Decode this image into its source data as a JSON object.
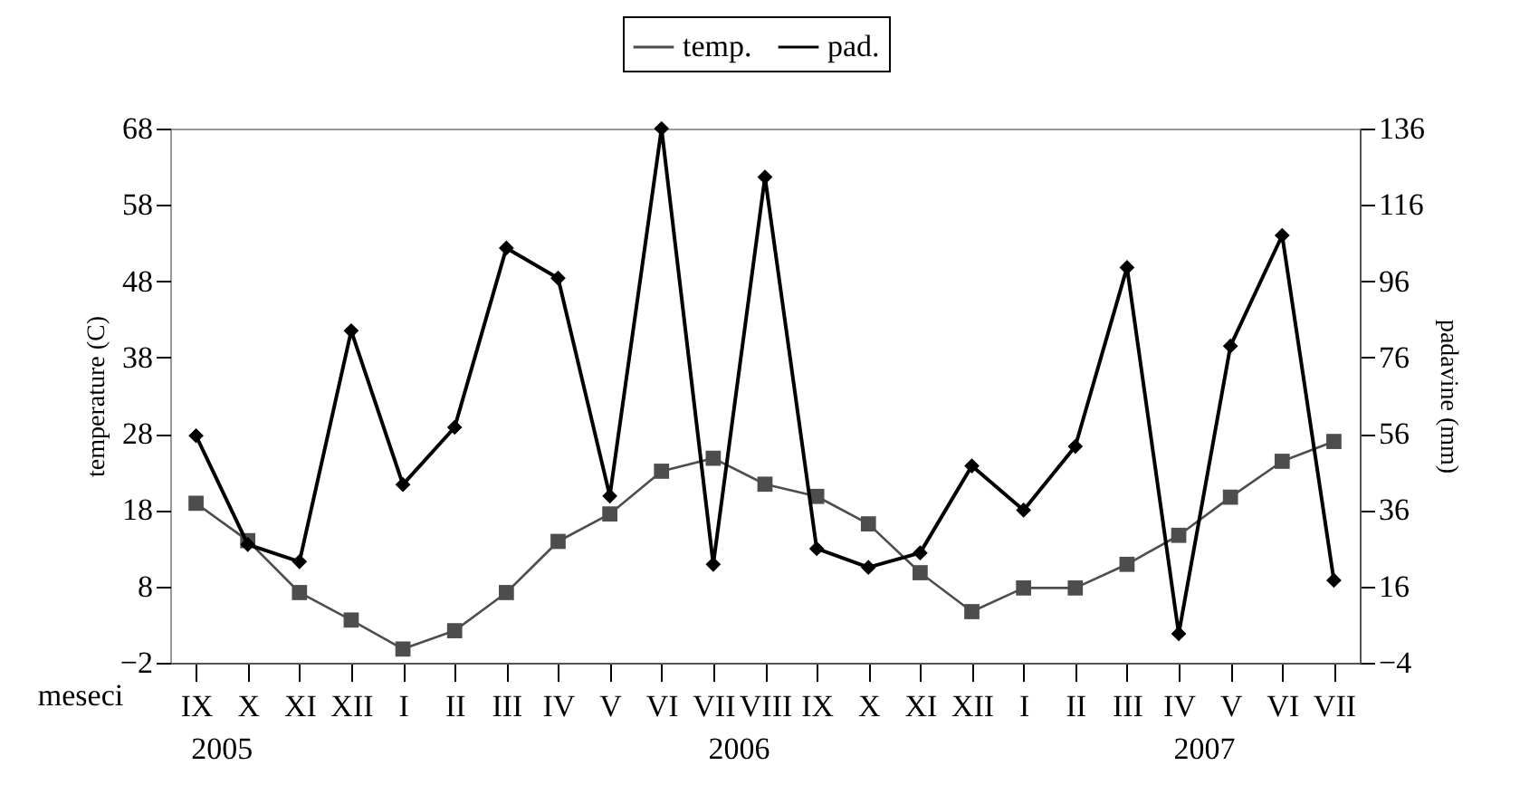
{
  "chart_data": {
    "type": "line",
    "xlabel": "meseci",
    "ylabel": "temperature (C)",
    "y2label": "padavine (mm)",
    "categories": [
      "IX",
      "X",
      "XI",
      "XII",
      "I",
      "II",
      "III",
      "IV",
      "V",
      "VI",
      "VII",
      "VIII",
      "IX",
      "X",
      "XI",
      "XII",
      "I",
      "II",
      "III",
      "IV",
      "V",
      "VI",
      "VII"
    ],
    "series": [
      {
        "name": "temp.",
        "color": "#4d4d4d",
        "marker": "square",
        "values": [
          18.9,
          14,
          7.2,
          3.6,
          -0.2,
          2.2,
          7.2,
          13.9,
          17.5,
          23.1,
          24.8,
          21.4,
          19.8,
          16.2,
          9.8,
          4.7,
          7.8,
          7.8,
          10.9,
          14.7,
          19.7,
          24.4,
          27
        ]
      },
      {
        "name": "pad.",
        "color": "#000000",
        "marker": "diamond",
        "axis": "y2",
        "values": [
          55.5,
          27,
          22.5,
          83,
          42.7,
          57.7,
          104.7,
          96.8,
          39.7,
          136,
          21.8,
          123.3,
          25.9,
          21,
          24.8,
          47.6,
          36,
          52.7,
          99.6,
          3.6,
          79,
          108,
          17.6
        ]
      }
    ],
    "ylim": [
      -2,
      68
    ],
    "yticks": [
      -2,
      8,
      18,
      28,
      38,
      48,
      58,
      68
    ],
    "y2lim": [
      -4,
      136
    ],
    "y2ticks": [
      -4,
      16,
      36,
      56,
      76,
      96,
      116,
      136
    ],
    "legend": "top",
    "grid": false,
    "line_style": "solid",
    "annotations": [
      "2005",
      "2006",
      "2007"
    ]
  }
}
